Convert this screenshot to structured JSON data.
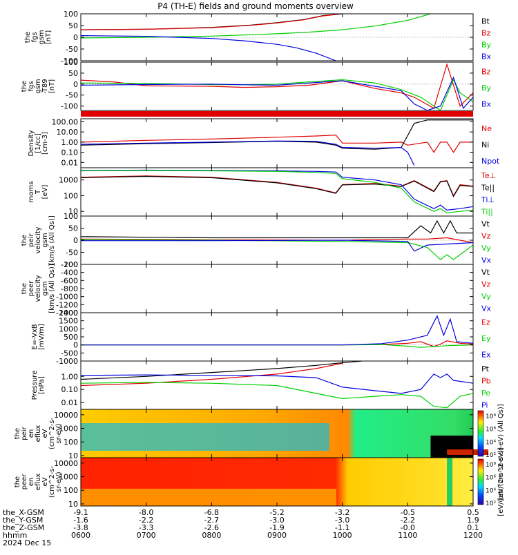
{
  "title": "P4 (TH-E) fields and ground moments overview",
  "colors": {
    "black": "#000000",
    "red": "#e00000",
    "green": "#00d000",
    "blue": "#0000e0",
    "axis": "#000000"
  },
  "chart_data": [
    {
      "type": "line",
      "panel": "fgs_gsm",
      "ylabel_lines": [
        "the",
        "fgs",
        "gsm",
        "[nT]"
      ],
      "ylim": [
        -100,
        100
      ],
      "yticks": [
        "100",
        "50",
        "0",
        "-50",
        "-100"
      ],
      "ytick_values": [
        100,
        50,
        0,
        -50,
        -100
      ],
      "series": [
        {
          "name": "Bt",
          "color": "black",
          "x": [
            6.0,
            7.0,
            8.0,
            8.6,
            9.0,
            9.4,
            9.7,
            10.0
          ],
          "y": [
            32,
            34,
            42,
            52,
            62,
            75,
            92,
            100
          ]
        },
        {
          "name": "Bz",
          "color": "red",
          "x": [
            6.0,
            7.0,
            8.0,
            8.6,
            9.0,
            9.4,
            9.7,
            10.0
          ],
          "y": [
            32,
            34,
            41,
            51,
            61,
            74,
            91,
            100
          ]
        },
        {
          "name": "By",
          "color": "green",
          "x": [
            6.0,
            7.0,
            8.0,
            8.5,
            9.0,
            9.5,
            10.0,
            10.5,
            11.0,
            11.35
          ],
          "y": [
            -3,
            0,
            5,
            10,
            15,
            22,
            32,
            48,
            72,
            100
          ]
        },
        {
          "name": "Bx",
          "color": "blue",
          "x": [
            6.0,
            7.0,
            8.0,
            8.5,
            9.0,
            9.3,
            9.6,
            9.9
          ],
          "y": [
            7,
            4,
            -5,
            -15,
            -30,
            -45,
            -68,
            -100
          ]
        }
      ]
    },
    {
      "type": "line",
      "panel": "fgs_gsm_minus_t89",
      "ylabel_lines": [
        "the",
        "fgs",
        "gsm",
        "-T89",
        "[nT]"
      ],
      "ylim": [
        -120,
        100
      ],
      "yticks": [
        "100",
        "50",
        "0",
        "-50",
        "-100"
      ],
      "ytick_values": [
        100,
        50,
        0,
        -50,
        -100
      ],
      "series": [
        {
          "name": "Bz",
          "color": "red",
          "x": [
            6.0,
            6.5,
            7.0,
            8.0,
            8.5,
            9.0,
            9.5,
            10.0,
            10.5,
            10.9,
            11.1,
            11.4,
            11.6,
            11.8,
            12.0
          ],
          "y": [
            18,
            10,
            -8,
            -10,
            -15,
            -12,
            -5,
            15,
            -20,
            -40,
            -60,
            -110,
            90,
            -100,
            -40
          ]
        },
        {
          "name": "By",
          "color": "green",
          "x": [
            6.0,
            7.0,
            8.0,
            8.5,
            9.0,
            9.5,
            10.0,
            10.5,
            10.9,
            11.2,
            11.5,
            11.7,
            11.8,
            12.0
          ],
          "y": [
            5,
            3,
            -2,
            -3,
            0,
            10,
            20,
            5,
            -25,
            -60,
            -120,
            20,
            -40,
            -80
          ]
        },
        {
          "name": "Bx",
          "color": "blue",
          "x": [
            6.0,
            7.0,
            8.0,
            8.5,
            9.0,
            9.5,
            10.0,
            10.5,
            10.9,
            11.1,
            11.3,
            11.5,
            11.7,
            11.85,
            12.0
          ],
          "y": [
            -5,
            -2,
            0,
            -3,
            -5,
            5,
            15,
            -10,
            -30,
            -90,
            -120,
            -100,
            30,
            -110,
            -60
          ]
        }
      ]
    },
    {
      "type": "line",
      "panel": "density",
      "log": true,
      "ylabel_lines": [
        "Density",
        "[1/cc]",
        "[cm-3]"
      ],
      "ylim": [
        0.003,
        200
      ],
      "yticks": [
        "100.00",
        "10.00",
        "1.00",
        "0.10",
        "0.01"
      ],
      "ytick_values": [
        100,
        10,
        1,
        0.1,
        0.01
      ],
      "series": [
        {
          "name": "Ne",
          "color": "red",
          "x": [
            6.0,
            7.0,
            8.0,
            9.0,
            9.6,
            9.9,
            10.0,
            10.5,
            10.9,
            11.0,
            11.3,
            11.4,
            11.5,
            11.6,
            11.7,
            11.8,
            12.0
          ],
          "y": [
            1.0,
            1.5,
            2.0,
            3.0,
            4.0,
            5.0,
            0.8,
            0.8,
            1.0,
            0.5,
            1.0,
            0.1,
            1.0,
            1.0,
            0.1,
            1.0,
            1.0
          ]
        },
        {
          "name": "Ni",
          "color": "black",
          "x": [
            6.0,
            7.0,
            8.0,
            9.0,
            9.6,
            9.9,
            10.0,
            10.5,
            10.9,
            11.1,
            11.3,
            12.0
          ],
          "y": [
            0.5,
            0.7,
            0.9,
            1.2,
            1.0,
            0.5,
            0.25,
            0.2,
            0.3,
            70,
            150,
            150
          ]
        },
        {
          "name": "Npot",
          "color": "blue",
          "x": [
            6.0,
            7.0,
            8.0,
            9.0,
            9.6,
            9.9,
            10.0,
            10.5,
            10.9,
            11.0,
            11.1
          ],
          "y": [
            0.6,
            0.8,
            1.0,
            1.3,
            1.2,
            0.6,
            0.3,
            0.25,
            0.3,
            0.1,
            0.005
          ]
        }
      ]
    },
    {
      "type": "line",
      "panel": "moms_t",
      "log": true,
      "ylabel_lines": [
        "moms",
        "T",
        "[eV]"
      ],
      "ylim": [
        5,
        6000
      ],
      "yticks": [
        "1000",
        "100",
        "10"
      ],
      "ytick_values": [
        1000,
        100,
        10
      ],
      "series": [
        {
          "name": "Te⊥",
          "color": "red",
          "x": [
            6.0,
            7.0,
            8.0,
            9.0,
            9.6,
            9.9,
            10.0,
            10.5,
            10.9,
            11.1,
            11.4,
            11.5,
            11.6,
            11.7,
            11.8,
            12.0
          ],
          "y": [
            1500,
            1800,
            1500,
            700,
            300,
            150,
            500,
            600,
            400,
            900,
            200,
            800,
            900,
            100,
            500,
            400
          ]
        },
        {
          "name": "Te||",
          "color": "black",
          "x": [
            6.0,
            7.0,
            8.0,
            9.0,
            9.6,
            9.9,
            10.0,
            10.5,
            10.9,
            11.1,
            11.4,
            11.5,
            11.6,
            11.7,
            11.8,
            12.0
          ],
          "y": [
            1400,
            1700,
            1400,
            650,
            280,
            140,
            480,
            550,
            380,
            850,
            180,
            750,
            850,
            90,
            450,
            380
          ]
        },
        {
          "name": "Ti⊥",
          "color": "blue",
          "x": [
            6.0,
            7.0,
            8.0,
            9.0,
            9.6,
            9.9,
            10.0,
            10.5,
            10.9,
            11.1,
            11.4,
            11.5,
            11.6,
            11.8,
            12.0
          ],
          "y": [
            4000,
            4200,
            4000,
            3800,
            3500,
            3200,
            1500,
            1000,
            500,
            60,
            15,
            25,
            12,
            15,
            20
          ]
        },
        {
          "name": "Ti||",
          "color": "green",
          "x": [
            6.0,
            7.0,
            8.0,
            9.0,
            9.6,
            9.9,
            10.0,
            10.5,
            10.9,
            11.1,
            11.4,
            11.5,
            11.6,
            11.8,
            12.0
          ],
          "y": [
            3800,
            4000,
            3800,
            3500,
            3000,
            2600,
            1200,
            700,
            300,
            40,
            10,
            15,
            8,
            10,
            12
          ]
        }
      ]
    },
    {
      "type": "line",
      "panel": "peir_velocity",
      "ylabel_lines": [
        "the",
        "peir",
        "velocity",
        "gsm",
        "[km/s (All Qs)]"
      ],
      "ylim": [
        -100,
        100
      ],
      "yticks": [
        "100",
        "50",
        "0",
        "-50",
        "-100"
      ],
      "ytick_values": [
        100,
        50,
        0,
        -50,
        -100
      ],
      "series": [
        {
          "name": "Vt",
          "color": "black",
          "x": [
            6.0,
            8.0,
            10.0,
            11.0,
            11.2,
            11.35,
            11.45,
            11.55,
            11.65,
            11.75,
            11.85,
            12.0
          ],
          "y": [
            15,
            10,
            10,
            10,
            60,
            30,
            80,
            30,
            80,
            30,
            30,
            30
          ]
        },
        {
          "name": "Vz",
          "color": "red",
          "x": [
            6.0,
            8.0,
            10.0,
            11.0,
            11.3,
            11.6,
            12.0
          ],
          "y": [
            5,
            2,
            0,
            5,
            5,
            10,
            -10
          ]
        },
        {
          "name": "Vy",
          "color": "green",
          "x": [
            6.0,
            8.0,
            10.0,
            11.0,
            11.3,
            11.5,
            11.6,
            11.7,
            12.0
          ],
          "y": [
            3,
            0,
            -5,
            -10,
            -30,
            -80,
            -60,
            -80,
            -20
          ]
        },
        {
          "name": "Vx",
          "color": "blue",
          "x": [
            6.0,
            8.0,
            10.0,
            11.0,
            11.1,
            11.3,
            12.0
          ],
          "y": [
            -2,
            -2,
            0,
            -5,
            -45,
            -20,
            -10
          ]
        }
      ]
    },
    {
      "type": "line",
      "panel": "peer_velocity",
      "ylabel_lines": [
        "the",
        "peer",
        "velocity",
        "gsm",
        "[km/s (All Qs)]"
      ],
      "ylim": [
        -1400,
        -200
      ],
      "yticks": [
        "-200",
        "-400",
        "-600",
        "-800",
        "-1000",
        "-1200",
        "-1400"
      ],
      "ytick_values": [
        -200,
        -400,
        -600,
        -800,
        -1000,
        -1200,
        -1400
      ],
      "series": [
        {
          "name": "Vt",
          "color": "black",
          "x": [],
          "y": []
        },
        {
          "name": "Vz",
          "color": "red",
          "x": [],
          "y": []
        },
        {
          "name": "Vy",
          "color": "green",
          "x": [],
          "y": []
        },
        {
          "name": "Vx",
          "color": "blue",
          "x": [],
          "y": []
        }
      ]
    },
    {
      "type": "line",
      "panel": "e_field",
      "ylabel_lines": [
        "E=-VxB",
        "[mV/m]"
      ],
      "ylim": [
        -1000,
        2000
      ],
      "yticks": [
        "2000",
        "1500",
        "1000",
        "500",
        "0",
        "-500",
        "-1000"
      ],
      "ytick_values": [
        2000,
        1500,
        1000,
        500,
        0,
        -500,
        -1000
      ],
      "series": [
        {
          "name": "Ez",
          "color": "red",
          "x": [
            6.0,
            9.0,
            10.0,
            10.6,
            11.0,
            11.2,
            11.4,
            11.5,
            11.6,
            11.8,
            12.0
          ],
          "y": [
            0,
            0,
            0,
            30,
            100,
            200,
            -100,
            50,
            250,
            100,
            50
          ]
        },
        {
          "name": "Ey",
          "color": "green",
          "x": [
            6.0,
            9.0,
            10.0,
            10.6,
            11.0,
            11.2,
            11.4,
            11.6,
            11.8,
            12.0
          ],
          "y": [
            0,
            0,
            0,
            20,
            -80,
            -150,
            -100,
            -50,
            -20,
            0
          ]
        },
        {
          "name": "Ex",
          "color": "blue",
          "x": [
            6.0,
            9.0,
            10.0,
            10.6,
            11.0,
            11.3,
            11.45,
            11.55,
            11.65,
            11.75,
            12.0
          ],
          "y": [
            0,
            0,
            0,
            80,
            300,
            600,
            1800,
            600,
            1600,
            200,
            100
          ]
        }
      ]
    },
    {
      "type": "line",
      "panel": "pressure",
      "log": true,
      "ylabel_lines": [
        "Pressure",
        "[nPa]"
      ],
      "ylim": [
        0.003,
        15
      ],
      "yticks": [
        "1.00",
        "0.10",
        "0.01"
      ],
      "ytick_values": [
        1,
        0.1,
        0.01
      ],
      "series": [
        {
          "name": "Pt",
          "color": "black",
          "x": [
            6.0,
            7.0,
            8.0,
            9.0,
            9.6,
            10.0,
            10.3
          ],
          "y": [
            0.6,
            1.0,
            2.0,
            4.0,
            7.0,
            11.0,
            15.0
          ]
        },
        {
          "name": "Pb",
          "color": "red",
          "x": [
            6.0,
            7.0,
            8.0,
            9.0,
            9.6,
            10.0
          ],
          "y": [
            0.2,
            0.3,
            0.6,
            1.5,
            4.0,
            10.0
          ]
        },
        {
          "name": "Pe",
          "color": "green",
          "x": [
            6.0,
            7.0,
            8.0,
            9.0,
            9.6,
            10.0,
            10.5,
            10.9,
            11.2,
            11.4,
            11.6,
            11.8,
            12.0
          ],
          "y": [
            0.3,
            0.35,
            0.3,
            0.2,
            0.05,
            0.02,
            0.03,
            0.04,
            0.03,
            0.005,
            0.004,
            0.03,
            0.05
          ]
        },
        {
          "name": "Pi",
          "color": "blue",
          "x": [
            6.0,
            7.0,
            8.0,
            9.0,
            9.6,
            10.0,
            10.5,
            10.9,
            11.2,
            11.4,
            11.5,
            11.6,
            11.7,
            12.0
          ],
          "y": [
            1.2,
            1.3,
            1.2,
            1.1,
            0.8,
            0.15,
            0.08,
            0.05,
            0.1,
            1.5,
            0.8,
            1.5,
            0.5,
            0.3
          ]
        }
      ]
    },
    {
      "type": "heatmap",
      "panel": "peir_spectrogram",
      "log": true,
      "ylabel_lines": [
        "the",
        "peir",
        "en",
        "eflux",
        "eV",
        "(cm^2-s-",
        "sr-eV)"
      ],
      "ylim": [
        7,
        25000
      ],
      "yticks": [
        "10000",
        "1000",
        "100",
        "10"
      ],
      "ytick_values": [
        10000,
        1000,
        100,
        10
      ]
    },
    {
      "type": "heatmap",
      "panel": "peer_spectrogram",
      "log": true,
      "ylabel_lines": [
        "the",
        "peer",
        "en",
        "eflux",
        "eV",
        "(cm^2-s-",
        "sr-eV)"
      ],
      "ylim": [
        7,
        25000
      ],
      "yticks": [
        "10000",
        "1000",
        "100",
        "10"
      ],
      "ytick_values": [
        10000,
        1000,
        100,
        10
      ]
    }
  ],
  "colorbars": [
    {
      "ticks": [
        "10⁸",
        "10⁶",
        "10⁴",
        "10²"
      ],
      "label": "[eV/(cm^2-s-sr-eV) (All Qs)]"
    },
    {
      "ticks": [
        "10⁸",
        "10⁶",
        "10⁴",
        "10²"
      ],
      "label": "[eV/(cm^2-s-sr-eV)]"
    }
  ],
  "legends": [
    [
      "Bt",
      "Bz",
      "By",
      "Bx"
    ],
    [
      "Bz",
      "By",
      "Bx"
    ],
    [
      "Ne",
      "Ni",
      "Npot"
    ],
    [
      "Te⊥",
      "Te||",
      "Ti⊥",
      "Ti||"
    ],
    [
      "Vt",
      "Vz",
      "Vy",
      "Vx"
    ],
    [
      "Vt",
      "Vz",
      "Vy",
      "Vx"
    ],
    [
      "Ez",
      "Ey",
      "Ex"
    ],
    [
      "Pt",
      "Pb",
      "Pe",
      "Pi"
    ]
  ],
  "x_axis": {
    "xlim": [
      6.0,
      12.0
    ],
    "tick_times": [
      6,
      7,
      8,
      9,
      10,
      11,
      12
    ],
    "rows": [
      {
        "label": "the_X-GSM",
        "values": [
          "-9.1",
          "-8.0",
          "-6.8",
          "-5.2",
          "-3.2",
          "-0.5",
          "0.5"
        ]
      },
      {
        "label": "the_Y-GSM",
        "values": [
          "-1.6",
          "-2.2",
          "-2.7",
          "-3.0",
          "-3.0",
          "-2.2",
          "1.9"
        ]
      },
      {
        "label": "the_Z-GSM",
        "values": [
          "-3.8",
          "-3.3",
          "-2.6",
          "-1.9",
          "-1.1",
          "-0.0",
          "0.1"
        ]
      },
      {
        "label": "hhmm",
        "values": [
          "0600",
          "0700",
          "0800",
          "0900",
          "1000",
          "1100",
          "1200"
        ]
      }
    ],
    "date": "2024 Dec 15"
  }
}
